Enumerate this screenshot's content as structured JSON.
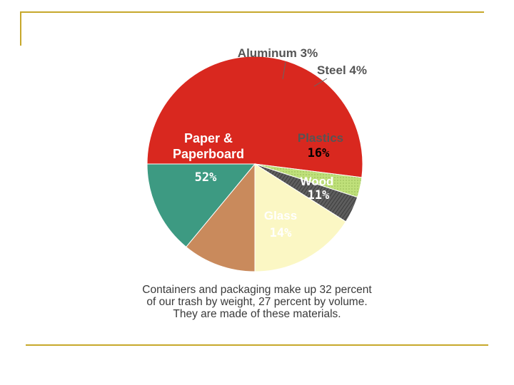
{
  "chart_data": {
    "type": "pie",
    "slices": [
      {
        "label_lines": [
          "Paper &",
          "Paperboard"
        ],
        "pct_label": "52%",
        "value": 52,
        "color": "#d9281f"
      },
      {
        "label_lines": [
          "Aluminum 3%"
        ],
        "pct_label": "",
        "value": 3,
        "color": "#bfe07a"
      },
      {
        "label_lines": [
          "Steel 4%"
        ],
        "pct_label": "",
        "value": 4,
        "color": "#5e5e5e"
      },
      {
        "label_lines": [
          "Plastics"
        ],
        "pct_label": "16%",
        "value": 16,
        "color": "#fbf7c4"
      },
      {
        "label_lines": [
          "Wood"
        ],
        "pct_label": "11%",
        "value": 11,
        "color": "#c98a5c"
      },
      {
        "label_lines": [
          "Glass"
        ],
        "pct_label": "14%",
        "value": 14,
        "color": "#3d9a82"
      }
    ],
    "start_angle_deg": 180,
    "direction": "clockwise",
    "caption_lines": [
      "Containers and packaging make up 32 percent",
      "of our trash by weight, 27 percent by volume.",
      "They are made of these materials."
    ]
  }
}
